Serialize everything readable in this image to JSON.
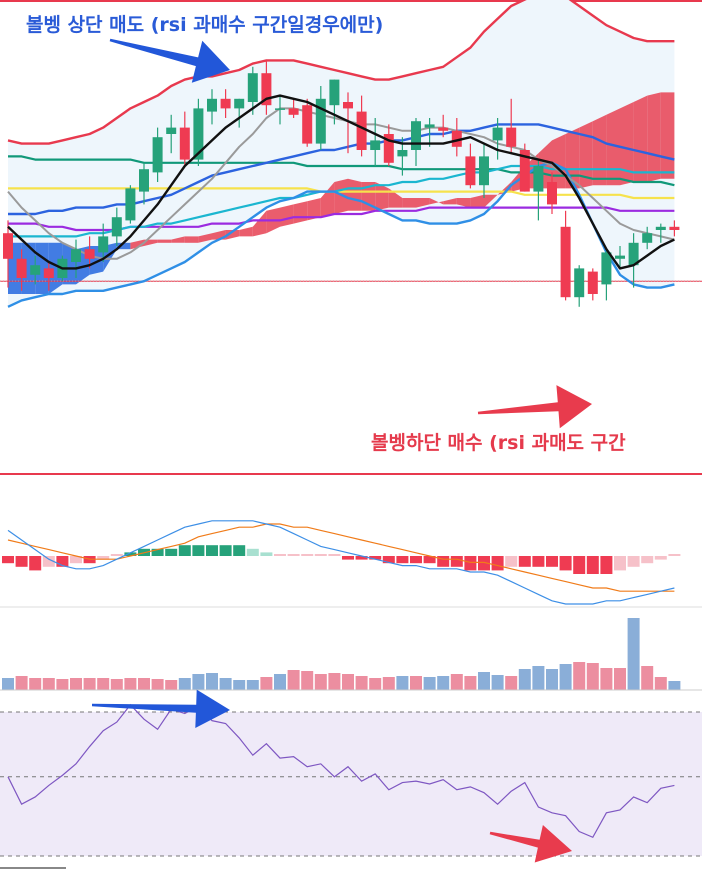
{
  "annotations": {
    "upper_band_sell": {
      "text": "볼벵 상단 매도 (rsi 과매수 구간일경우에만)",
      "color": "#2a5bd7"
    },
    "lower_band_buy": {
      "text": "볼벵하단 매수 (rsi 과매도 구간",
      "color": "#e53a4c"
    }
  },
  "colors": {
    "up": "#26a27a",
    "down": "#ef3b52",
    "bb_upper": "#e8394e",
    "bb_lower": "#2f8fe6",
    "bb_fill": "#eef6fc",
    "cloud_bull": "#2f6fe0",
    "cloud_bear": "#e84b5c",
    "ma_black": "#111111",
    "ma_gray": "#9a9a9a",
    "ma_blue": "#2c63df",
    "ma_cyan": "#1bb6d0",
    "ma_green": "#109879",
    "ma_yellow": "#f6e24c",
    "ma_purple": "#9b2be0",
    "macd_line": "#3d8fe6",
    "signal_line": "#f07b19",
    "vol_up": "#8aaed8",
    "vol_down": "#ec8ea0",
    "rsi_line": "#7e57c2",
    "rsi_fill": "#efeaf8",
    "arrow_blue": "#2257d9",
    "arrow_red": "#e83b4d"
  },
  "chart_data": [
    {
      "type": "candlestick",
      "title": "",
      "x_count": 50,
      "ylim": [
        0,
        100
      ],
      "candles": [
        {
          "o": 49,
          "h": 53,
          "l": 32,
          "c": 41
        },
        {
          "o": 41,
          "h": 44,
          "l": 31,
          "c": 35
        },
        {
          "o": 36,
          "h": 42,
          "l": 33,
          "c": 39
        },
        {
          "o": 38,
          "h": 40,
          "l": 31,
          "c": 35
        },
        {
          "o": 35,
          "h": 42,
          "l": 34,
          "c": 41
        },
        {
          "o": 40,
          "h": 47,
          "l": 35,
          "c": 44
        },
        {
          "o": 44,
          "h": 48,
          "l": 38,
          "c": 41
        },
        {
          "o": 43,
          "h": 52,
          "l": 40,
          "c": 48
        },
        {
          "o": 48,
          "h": 57,
          "l": 45,
          "c": 54
        },
        {
          "o": 53,
          "h": 64,
          "l": 52,
          "c": 63
        },
        {
          "o": 62,
          "h": 71,
          "l": 58,
          "c": 69
        },
        {
          "o": 68,
          "h": 82,
          "l": 65,
          "c": 79
        },
        {
          "o": 80,
          "h": 86,
          "l": 74,
          "c": 82
        },
        {
          "o": 82,
          "h": 87,
          "l": 70,
          "c": 72
        },
        {
          "o": 72,
          "h": 91,
          "l": 70,
          "c": 88
        },
        {
          "o": 87,
          "h": 94,
          "l": 83,
          "c": 91
        },
        {
          "o": 91,
          "h": 94,
          "l": 85,
          "c": 88
        },
        {
          "o": 88,
          "h": 91,
          "l": 82,
          "c": 91
        },
        {
          "o": 90,
          "h": 101,
          "l": 86,
          "c": 99
        },
        {
          "o": 99,
          "h": 103,
          "l": 86,
          "c": 89
        },
        {
          "o": 88,
          "h": 92,
          "l": 83,
          "c": 88
        },
        {
          "o": 88,
          "h": 91,
          "l": 85,
          "c": 86
        },
        {
          "o": 89,
          "h": 91,
          "l": 76,
          "c": 77
        },
        {
          "o": 77,
          "h": 95,
          "l": 75,
          "c": 91
        },
        {
          "o": 89,
          "h": 97,
          "l": 83,
          "c": 97
        },
        {
          "o": 90,
          "h": 93,
          "l": 74,
          "c": 88
        },
        {
          "o": 87,
          "h": 92,
          "l": 73,
          "c": 75
        },
        {
          "o": 75,
          "h": 85,
          "l": 70,
          "c": 78
        },
        {
          "o": 80,
          "h": 83,
          "l": 70,
          "c": 71
        },
        {
          "o": 73,
          "h": 79,
          "l": 67,
          "c": 75
        },
        {
          "o": 75,
          "h": 85,
          "l": 70,
          "c": 84
        },
        {
          "o": 82,
          "h": 85,
          "l": 76,
          "c": 83
        },
        {
          "o": 82,
          "h": 86,
          "l": 79,
          "c": 81
        },
        {
          "o": 81,
          "h": 85,
          "l": 73,
          "c": 76
        },
        {
          "o": 73,
          "h": 77,
          "l": 63,
          "c": 64
        },
        {
          "o": 64,
          "h": 77,
          "l": 60,
          "c": 73
        },
        {
          "o": 78,
          "h": 85,
          "l": 72,
          "c": 82
        },
        {
          "o": 82,
          "h": 91,
          "l": 74,
          "c": 76
        },
        {
          "o": 75,
          "h": 77,
          "l": 62,
          "c": 62
        },
        {
          "o": 62,
          "h": 72,
          "l": 53,
          "c": 70
        },
        {
          "o": 65,
          "h": 68,
          "l": 55,
          "c": 58
        },
        {
          "o": 51,
          "h": 56,
          "l": 28,
          "c": 29
        },
        {
          "o": 29,
          "h": 39,
          "l": 26,
          "c": 38
        },
        {
          "o": 37,
          "h": 38,
          "l": 28,
          "c": 30
        },
        {
          "o": 33,
          "h": 44,
          "l": 28,
          "c": 43
        },
        {
          "o": 41,
          "h": 45,
          "l": 38,
          "c": 42
        },
        {
          "o": 39,
          "h": 49,
          "l": 32,
          "c": 46
        },
        {
          "o": 46,
          "h": 51,
          "l": 44,
          "c": 49
        },
        {
          "o": 50,
          "h": 52,
          "l": 46,
          "c": 51
        },
        {
          "o": 51,
          "h": 53,
          "l": 48,
          "c": 50
        }
      ],
      "bb_upper": [
        78,
        77,
        77,
        77,
        78,
        79,
        80,
        82,
        85,
        88,
        90,
        92,
        95,
        97,
        98,
        98,
        99,
        100,
        102,
        103,
        103,
        103,
        102,
        101,
        100,
        99,
        98,
        97,
        97,
        98,
        99,
        100,
        101,
        104,
        107,
        112,
        116,
        120,
        122,
        124,
        124,
        123,
        120,
        117,
        114,
        112,
        110,
        109,
        109,
        109
      ],
      "bb_lower": [
        26,
        28,
        29,
        30,
        30,
        31,
        31,
        31,
        32,
        33,
        34,
        36,
        38,
        40,
        43,
        46,
        48,
        51,
        54,
        57,
        59,
        60,
        62,
        62,
        62,
        60,
        59,
        57,
        55,
        53,
        53,
        52,
        52,
        52,
        53,
        55,
        59,
        64,
        67,
        70,
        71,
        69,
        61,
        52,
        43,
        36,
        33,
        32,
        32,
        33
      ],
      "ma_black": [
        51,
        47,
        43,
        40,
        38,
        38,
        39,
        41,
        44,
        48,
        53,
        58,
        64,
        70,
        74,
        78,
        82,
        85,
        88,
        91,
        92,
        91,
        90,
        88,
        86,
        84,
        82,
        80,
        78,
        77,
        77,
        77,
        77,
        78,
        79,
        77,
        75,
        74,
        73,
        72,
        71,
        67,
        60,
        52,
        44,
        38,
        39,
        42,
        45,
        47
      ],
      "ma_gray": [
        62,
        57,
        53,
        49,
        46,
        44,
        42,
        41,
        41,
        43,
        46,
        50,
        54,
        58,
        62,
        66,
        71,
        76,
        80,
        85,
        88,
        88,
        87,
        86,
        85,
        84,
        83,
        83,
        82,
        81,
        81,
        82,
        82,
        81,
        80,
        79,
        77,
        76,
        75,
        72,
        70,
        67,
        64,
        60,
        56,
        52,
        50,
        49,
        48,
        47
      ],
      "ma_blue": [
        55,
        55,
        55,
        56,
        56,
        57,
        57,
        57,
        58,
        58,
        59,
        60,
        61,
        63,
        65,
        67,
        68,
        69,
        70,
        71,
        72,
        73,
        74,
        75,
        75,
        76,
        77,
        77,
        78,
        78,
        79,
        80,
        80,
        81,
        81,
        82,
        83,
        83,
        83,
        83,
        82,
        81,
        80,
        79,
        77,
        76,
        75,
        74,
        73,
        72
      ],
      "ma_cyan": [
        48,
        48,
        48,
        48,
        48,
        48,
        49,
        49,
        50,
        51,
        51,
        52,
        52,
        53,
        54,
        55,
        56,
        57,
        58,
        59,
        60,
        60,
        61,
        62,
        62,
        63,
        63,
        64,
        64,
        65,
        65,
        66,
        66,
        67,
        68,
        68,
        69,
        70,
        70,
        70,
        69,
        69,
        69,
        69,
        69,
        69,
        68,
        68,
        68,
        68
      ],
      "ma_green": [
        73,
        73,
        72,
        72,
        72,
        72,
        72,
        72,
        72,
        72,
        71,
        71,
        71,
        71,
        71,
        71,
        71,
        71,
        71,
        71,
        71,
        71,
        70,
        70,
        70,
        70,
        70,
        70,
        70,
        69,
        69,
        69,
        69,
        69,
        69,
        69,
        69,
        68,
        68,
        68,
        67,
        67,
        67,
        66,
        66,
        66,
        65,
        65,
        65,
        64
      ],
      "ma_yellow": [
        63,
        63,
        63,
        63,
        63,
        63,
        63,
        63,
        63,
        63,
        63,
        63,
        63,
        63,
        63,
        63,
        63,
        63,
        63,
        63,
        63,
        63,
        63,
        62,
        62,
        62,
        62,
        62,
        62,
        62,
        62,
        62,
        62,
        62,
        62,
        62,
        62,
        62,
        61,
        61,
        61,
        61,
        61,
        61,
        61,
        61,
        60,
        60,
        60,
        60
      ],
      "ma_purple": [
        52,
        52,
        52,
        51,
        51,
        50,
        50,
        50,
        50,
        51,
        51,
        51,
        51,
        51,
        51,
        52,
        52,
        52,
        53,
        53,
        53,
        54,
        54,
        54,
        55,
        55,
        55,
        56,
        56,
        56,
        56,
        57,
        57,
        57,
        57,
        57,
        57,
        57,
        57,
        57,
        57,
        57,
        57,
        57,
        57,
        56,
        56,
        56,
        56,
        56
      ],
      "cloud_top": [
        46,
        46,
        46,
        46,
        46,
        44,
        45,
        45,
        46,
        46,
        47,
        47,
        47,
        48,
        48,
        49,
        50,
        50,
        51,
        56,
        57,
        58,
        59,
        60,
        65,
        66,
        65,
        65,
        63,
        60,
        60,
        60,
        58,
        58,
        57,
        57,
        61,
        65,
        70,
        74,
        78,
        80,
        82,
        84,
        86,
        88,
        90,
        92,
        93,
        93
      ],
      "cloud_bottom": [
        30,
        30,
        30,
        30,
        33,
        33,
        36,
        37,
        44,
        44,
        45,
        46,
        46,
        46,
        46,
        47,
        47,
        48,
        48,
        49,
        51,
        52,
        53,
        54,
        55,
        56,
        56,
        56,
        57,
        57,
        57,
        58,
        59,
        60,
        60,
        61,
        61,
        62,
        63,
        63,
        63,
        63,
        63,
        64,
        64,
        64,
        65,
        65,
        66,
        66
      ],
      "hline_red": 34
    },
    {
      "type": "bar",
      "title": "",
      "ylim": [
        -12,
        12
      ],
      "macd_hist": [
        -2,
        -3,
        -4,
        -3,
        -3,
        -2,
        -2,
        -1,
        0,
        1,
        2,
        2,
        2,
        3,
        3,
        3,
        3,
        3,
        2,
        1,
        0,
        0,
        0,
        0,
        0,
        -1,
        -1,
        -1,
        -2,
        -2,
        -2,
        -2,
        -3,
        -3,
        -4,
        -4,
        -4,
        -3,
        -3,
        -3,
        -3,
        -4,
        -5,
        -5,
        -5,
        -4,
        -3,
        -2,
        -1,
        0
      ],
      "macd": [
        8,
        5,
        2,
        -1,
        -3,
        -4,
        -4,
        -3,
        -1,
        1,
        3,
        5,
        7,
        9,
        10,
        11,
        11,
        11,
        11,
        10,
        9,
        7,
        5,
        3,
        2,
        1,
        0,
        -1,
        -2,
        -3,
        -3,
        -4,
        -4,
        -4,
        -5,
        -5,
        -6,
        -8,
        -10,
        -12,
        -14,
        -15,
        -15,
        -15,
        -14,
        -14,
        -13,
        -12,
        -11,
        -10
      ],
      "signal": [
        5,
        4,
        3,
        2,
        1,
        0,
        -1,
        -1,
        -1,
        0,
        1,
        2,
        3,
        4,
        6,
        7,
        8,
        9,
        9,
        10,
        10,
        9,
        9,
        8,
        7,
        6,
        5,
        4,
        3,
        2,
        1,
        0,
        -1,
        -1,
        -2,
        -2,
        -3,
        -4,
        -5,
        -6,
        -7,
        -8,
        -9,
        -10,
        -10,
        -11,
        -11,
        -11,
        -11,
        -11
      ]
    },
    {
      "type": "bar",
      "title": "",
      "ylim": [
        0,
        100
      ],
      "volume": [
        12,
        14,
        12,
        12,
        11,
        12,
        12,
        12,
        11,
        12,
        12,
        11,
        10,
        12,
        16,
        17,
        12,
        10,
        10,
        13,
        16,
        20,
        19,
        16,
        17,
        16,
        14,
        12,
        13,
        14,
        14,
        13,
        14,
        16,
        14,
        18,
        15,
        14,
        21,
        24,
        21,
        26,
        28,
        27,
        22,
        22,
        72,
        24,
        13,
        9
      ],
      "volume_up": [
        true,
        false,
        false,
        false,
        false,
        false,
        false,
        false,
        false,
        false,
        false,
        false,
        false,
        true,
        true,
        true,
        true,
        true,
        true,
        false,
        true,
        false,
        false,
        false,
        false,
        false,
        false,
        false,
        false,
        true,
        false,
        true,
        true,
        false,
        false,
        true,
        true,
        false,
        true,
        true,
        true,
        true,
        false,
        false,
        false,
        false,
        true,
        false,
        false,
        true
      ]
    },
    {
      "type": "line",
      "title": "",
      "ylim": [
        0,
        100
      ],
      "rsi": [
        55,
        36,
        41,
        49,
        56,
        64,
        76,
        87,
        93,
        105,
        95,
        88,
        102,
        99,
        104,
        94,
        92,
        82,
        70,
        78,
        68,
        69,
        62,
        64,
        55,
        62,
        52,
        57,
        46,
        51,
        52,
        50,
        53,
        46,
        48,
        44,
        36,
        45,
        51,
        34,
        30,
        28,
        17,
        13,
        30,
        32,
        41,
        37,
        47,
        49
      ],
      "upper_dashed": 100,
      "mid_dashed": 55,
      "lower_dashed": 0
    }
  ]
}
